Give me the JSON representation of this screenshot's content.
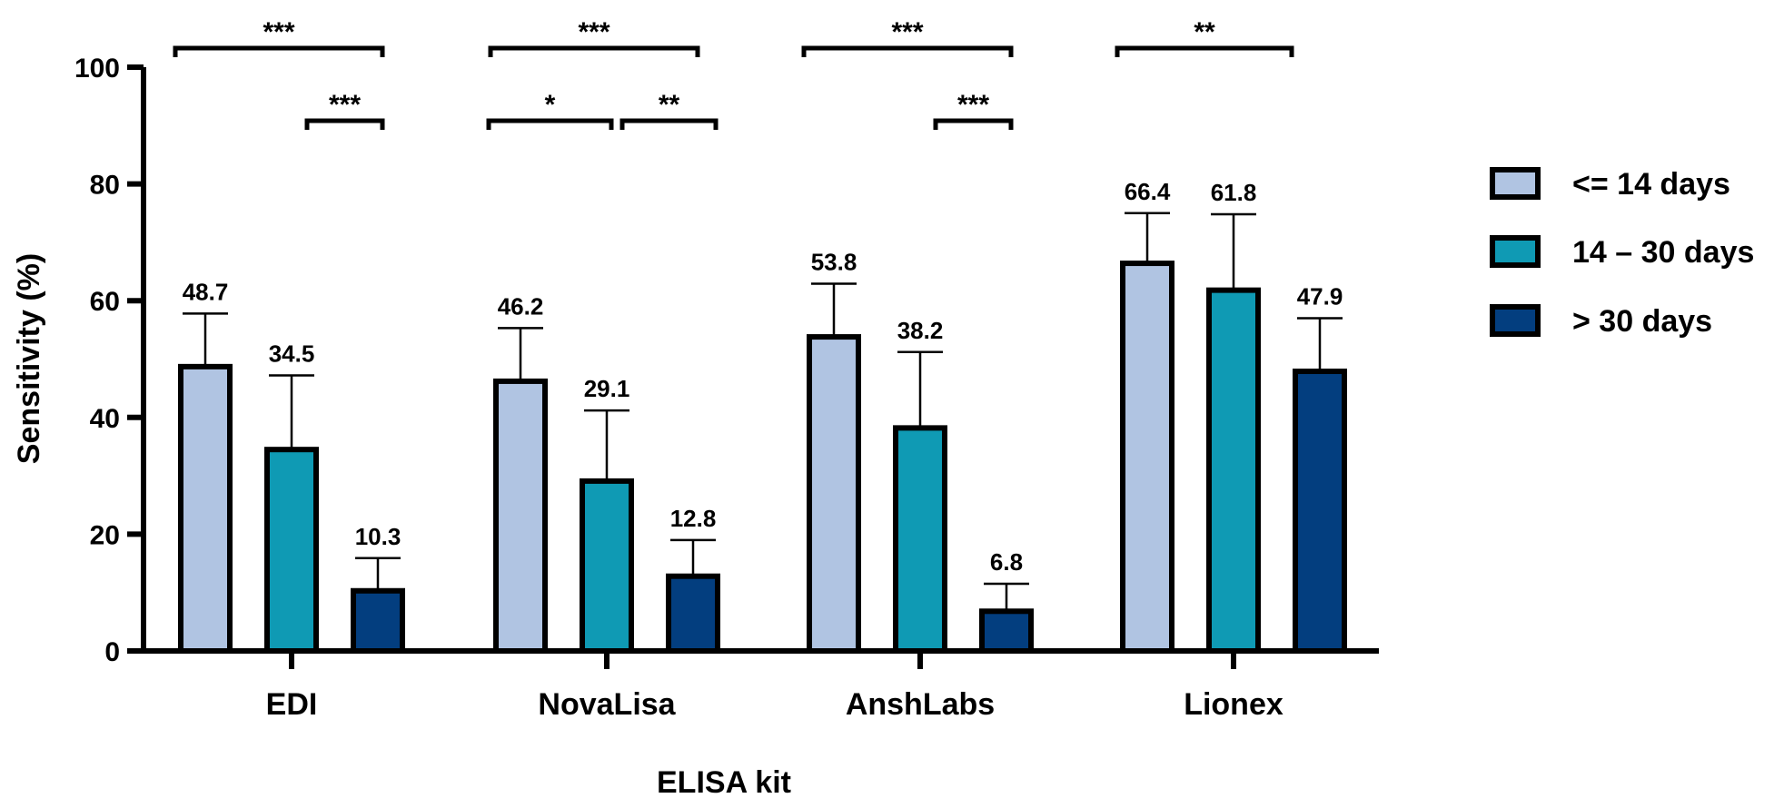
{
  "colors": {
    "series_1": "#B0C4E2",
    "series_2": "#0F9AB4",
    "series_3": "#033E7F",
    "outline": "#000000"
  },
  "chart_data": {
    "type": "bar",
    "title": "",
    "xlabel": "ELISA kit",
    "ylabel": "Sensitivity (%)",
    "ylim": [
      0,
      100
    ],
    "yticks": [
      0,
      20,
      40,
      60,
      80,
      100
    ],
    "categories": [
      "EDI",
      "NovaLisa",
      "AnshLabs",
      "Lionex"
    ],
    "series": [
      {
        "name": "<= 14 days",
        "values": [
          48.7,
          46.2,
          53.8,
          66.4
        ],
        "error_upper": [
          57.8,
          55.3,
          62.9,
          75.0
        ]
      },
      {
        "name": "14 – 30 days",
        "values": [
          34.5,
          29.1,
          38.2,
          61.8
        ],
        "error_upper": [
          47.2,
          41.2,
          51.2,
          74.8
        ]
      },
      {
        "name": "> 30 days",
        "values": [
          10.3,
          12.8,
          6.8,
          47.9
        ],
        "error_upper": [
          15.9,
          19.0,
          11.5,
          57.0
        ]
      }
    ],
    "value_labels": [
      [
        "48.7",
        "46.2",
        "53.8",
        "66.4"
      ],
      [
        "34.5",
        "29.1",
        "38.2",
        "61.8"
      ],
      [
        "10.3",
        "12.8",
        "6.8",
        "47.9"
      ]
    ],
    "significance": [
      {
        "category": 0,
        "from": 0,
        "to": 2,
        "label": "***",
        "level": 1
      },
      {
        "category": 0,
        "from": 1,
        "to": 2,
        "label": "***",
        "level": 0
      },
      {
        "category": 1,
        "from": 0,
        "to": 2,
        "label": "***",
        "level": 1
      },
      {
        "category": 1,
        "from": 0,
        "to": 1,
        "label": "*",
        "level": 0
      },
      {
        "category": 1,
        "from": 1,
        "to": 2,
        "label": "**",
        "level": 0
      },
      {
        "category": 2,
        "from": 0,
        "to": 2,
        "label": "***",
        "level": 1
      },
      {
        "category": 2,
        "from": 1,
        "to": 2,
        "label": "***",
        "level": 0
      },
      {
        "category": 3,
        "from": 0,
        "to": 2,
        "label": "**",
        "level": 1
      }
    ],
    "legend_position": "right",
    "grid": false
  }
}
